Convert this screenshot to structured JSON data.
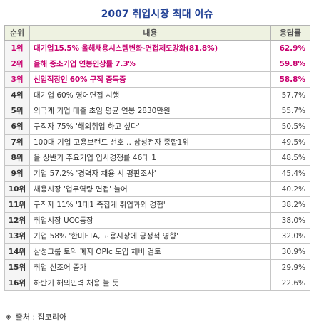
{
  "title": "2007 취업시장 최대 이슈",
  "headers": {
    "rank": "순위",
    "content": "내용",
    "rate": "응답률"
  },
  "rows": [
    {
      "rank": "1위",
      "content": "대기업15.5% 올해채용시스템변화-면접제도강화(81.8%)",
      "rate": "62.9%",
      "highlight": true
    },
    {
      "rank": "2위",
      "content": "올해 중소기업 연봉인상률 7.3%",
      "rate": "59.8%",
      "highlight": true
    },
    {
      "rank": "3위",
      "content": "신입직장인 60% 구직 중독증",
      "rate": "58.8%",
      "highlight": true
    },
    {
      "rank": "4위",
      "content": "대기업 60% 영어면접 시행",
      "rate": "57.7%",
      "highlight": false
    },
    {
      "rank": "5위",
      "content": "외국계 기업 대졸 초임 평균 연봉 2830만원",
      "rate": "55.7%",
      "highlight": false
    },
    {
      "rank": "6위",
      "content": "구직자 75% '해외취업 하고 싶다'",
      "rate": "50.5%",
      "highlight": false
    },
    {
      "rank": "7위",
      "content": "100대 기업 고용브랜드 선호 ‥ 삼성전자 종합1위",
      "rate": "49.5%",
      "highlight": false
    },
    {
      "rank": "8위",
      "content": "올 상반기 주요기업 입사경쟁률 46대 1",
      "rate": "48.5%",
      "highlight": false
    },
    {
      "rank": "9위",
      "content": "기업 57.2% '경력자 채용 시 평판조사'",
      "rate": "45.4%",
      "highlight": false
    },
    {
      "rank": "10위",
      "content": "채용시장 '업무역량 면접' 늘어",
      "rate": "40.2%",
      "highlight": false
    },
    {
      "rank": "11위",
      "content": "구직자 11% '1대1 족집게 취업과외 경험'",
      "rate": "38.2%",
      "highlight": false
    },
    {
      "rank": "12위",
      "content": "취업시장 UCC등장",
      "rate": "38.0%",
      "highlight": false
    },
    {
      "rank": "13위",
      "content": "기업 58% '한미FTA, 고용시장에 긍정적 영향'",
      "rate": "32.0%",
      "highlight": false
    },
    {
      "rank": "14위",
      "content": "삼성그룹 토익 폐지 OPIc 도입 채비 검토",
      "rate": "30.9%",
      "highlight": false
    },
    {
      "rank": "15위",
      "content": "취업 신조어 증가",
      "rate": "29.9%",
      "highlight": false
    },
    {
      "rank": "16위",
      "content": "하반기 해외인력 채용 늘 듯",
      "rate": "22.6%",
      "highlight": false
    }
  ],
  "source": {
    "icon": "diamond-icon",
    "text": "출처 : 잡코리아"
  },
  "colors": {
    "title": "#1f3f94",
    "highlight": "#c8006e",
    "header_bg": "#eef2e1"
  }
}
